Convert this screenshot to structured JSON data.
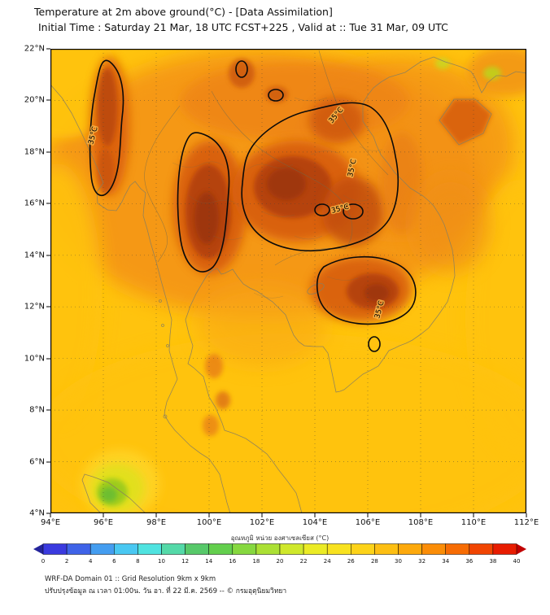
{
  "header": {
    "title": "Temperature at 2m above ground(°C) - [Data Assimilation]",
    "subtitle": "Initial Time : Saturday 21 Mar, 18 UTC FCST+225 , Valid at :: Tue 31 Mar, 09 UTC"
  },
  "map": {
    "lat_ticks": [
      "22°N",
      "20°N",
      "18°N",
      "16°N",
      "14°N",
      "12°N",
      "10°N",
      "8°N",
      "6°N",
      "4°N"
    ],
    "lon_ticks": [
      "94°E",
      "96°E",
      "98°E",
      "100°E",
      "102°E",
      "104°E",
      "106°E",
      "108°E",
      "110°E",
      "112°E"
    ],
    "contour_label": "35°C"
  },
  "colorbar": {
    "title": "อุณหภูมิ หน่วย องศาเซลเซียส (°C)",
    "ticks": [
      "0",
      "2",
      "4",
      "6",
      "8",
      "10",
      "12",
      "14",
      "16",
      "18",
      "20",
      "22",
      "24",
      "26",
      "28",
      "30",
      "32",
      "34",
      "36",
      "38",
      "40"
    ],
    "segment_colors": [
      "#3a3adf",
      "#3f63e8",
      "#449df0",
      "#49c8f2",
      "#4fe3e0",
      "#54d9a8",
      "#57c96a",
      "#63cf4d",
      "#86d83f",
      "#abe034",
      "#cfe82b",
      "#ebeb25",
      "#f8e21f",
      "#fdd319",
      "#fdbf12",
      "#fda90c",
      "#fb8d07",
      "#f76c04",
      "#f14502",
      "#e81c00"
    ],
    "under_arrow_color": "#24249b",
    "over_arrow_color": "#c10000"
  },
  "footer": {
    "line1": "WRF-DA Domain 01 :: Grid Resolution 9km x 9km",
    "line2": "ปรับปรุงข้อมูล ณ เวลา 01:00น. วัน อา. ที่ 22 มี.ค. 2569 -- © กรมอุตุนิยมวิทยา"
  },
  "chart_data": {
    "type": "heatmap",
    "title": "Temperature at 2m above ground(°C) - [Data Assimilation]",
    "subtitle": "Initial Time : Saturday 21 Mar, 18 UTC FCST+225 , Valid at :: Tue 31 Mar, 09 UTC",
    "x": {
      "label": "longitude",
      "range": [
        94,
        112
      ],
      "tick_step_deg": 2,
      "ticks": [
        "94°E",
        "96°E",
        "98°E",
        "100°E",
        "102°E",
        "104°E",
        "106°E",
        "108°E",
        "110°E",
        "112°E"
      ]
    },
    "y": {
      "label": "latitude",
      "range": [
        4,
        22
      ],
      "tick_step_deg": 2,
      "ticks": [
        "22°N",
        "20°N",
        "18°N",
        "16°N",
        "14°N",
        "12°N",
        "10°N",
        "8°N",
        "6°N",
        "4°N"
      ]
    },
    "color_scale": {
      "label": "อุณหภูมิ หน่วย องศาเซลเซียส (°C)",
      "min": 0,
      "max": 40,
      "step": 2
    },
    "contour_levels": [
      "35°C"
    ],
    "grid": true,
    "legend_position": "bottom"
  }
}
